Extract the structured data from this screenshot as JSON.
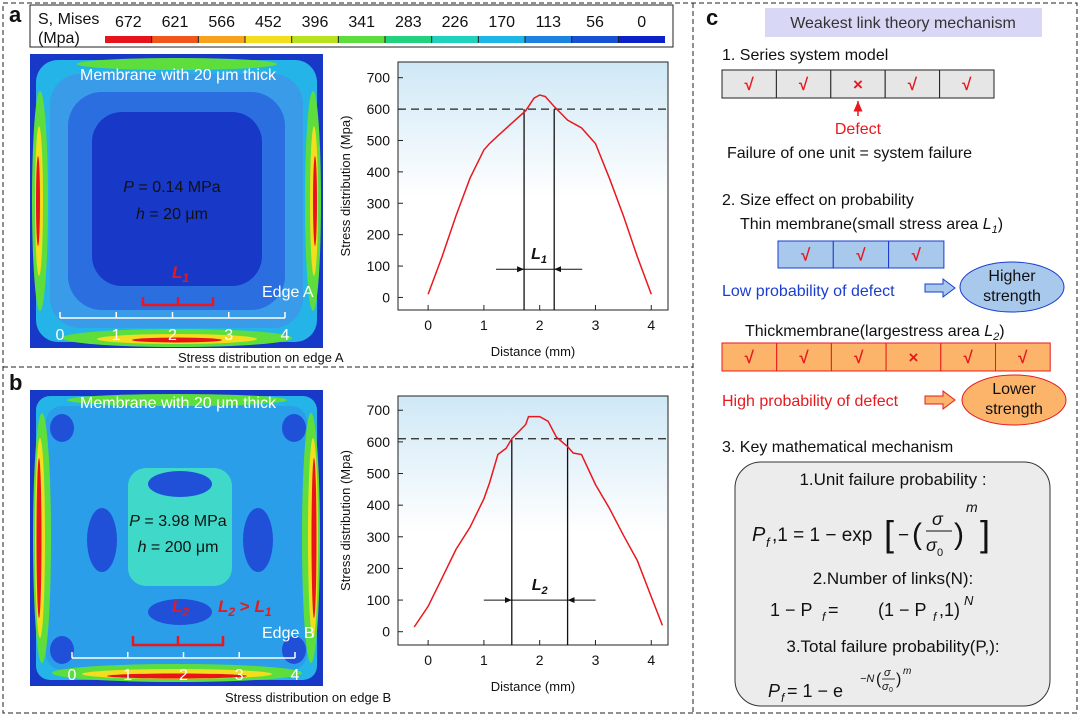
{
  "panel_labels": [
    "a",
    "b",
    "c"
  ],
  "colorbar": {
    "title": "S, Mises",
    "unit": "(Mpa)",
    "values": [
      672,
      621,
      566,
      452,
      396,
      341,
      283,
      226,
      170,
      113,
      56,
      0
    ],
    "colors": [
      "#e8141b",
      "#f2561a",
      "#f7a11c",
      "#f3dd1e",
      "#b6e21e",
      "#5ede3c",
      "#22d27e",
      "#1fd2bc",
      "#1eb6e6",
      "#1c84e0",
      "#1852d4",
      "#0c22c8"
    ]
  },
  "fem_images": [
    {
      "heading": "Membrane with 20 μm thick",
      "pressure": {
        "symbol": "P",
        "text": " = 0.14 MPa"
      },
      "thickness": {
        "symbol": "h",
        "text": " = 20 μm"
      },
      "length_label": {
        "symbol": "L",
        "sub": "1"
      },
      "edge": "Edge A",
      "ticks": [
        0,
        1,
        2,
        3,
        4
      ],
      "caption": "Stress distribution on edge A"
    },
    {
      "heading": "Membrane with 20 μm thick",
      "pressure": {
        "symbol": "P",
        "text": " = 3.98 MPa"
      },
      "thickness": {
        "symbol": "h",
        "text": " = 200 μm"
      },
      "length_label": {
        "symbol": "L",
        "sub": "2"
      },
      "comparison": {
        "a": "L",
        "a_sub": "2",
        "op": " > ",
        "b": "L",
        "b_sub": "1"
      },
      "edge": "Edge B",
      "ticks": [
        0,
        1,
        2,
        3,
        4
      ],
      "caption": "Stress distribution on edge B"
    }
  ],
  "chart_data": [
    {
      "type": "line",
      "ylabel": "Stress distribution (Mpa)",
      "xlabel": "Distance (mm)",
      "color": "#e8191e",
      "x": [
        0,
        0.25,
        0.5,
        0.75,
        1.0,
        1.1,
        1.25,
        1.5,
        1.75,
        1.9,
        2.0,
        2.1,
        2.25,
        2.5,
        2.75,
        3.0,
        3.25,
        3.5,
        3.75,
        4.0
      ],
      "values": [
        10,
        130,
        260,
        380,
        470,
        490,
        515,
        555,
        595,
        635,
        645,
        640,
        610,
        565,
        540,
        490,
        380,
        260,
        130,
        10
      ],
      "xlim": [
        -0.54,
        4.3
      ],
      "ylim": [
        -40,
        750
      ],
      "xticks": [
        0,
        1,
        2,
        3,
        4
      ],
      "yticks": [
        0,
        100,
        200,
        300,
        400,
        500,
        600,
        700
      ],
      "reference_line": 600,
      "annotation": {
        "label": "L",
        "sub": "1",
        "span": [
          1.72,
          2.26
        ],
        "y": 90
      }
    },
    {
      "type": "line",
      "ylabel": "Stress distribution (Mpa)",
      "xlabel": "Distance (mm)",
      "color": "#e8191e",
      "x": [
        -0.25,
        0,
        0.25,
        0.5,
        0.75,
        1.0,
        1.1,
        1.25,
        1.4,
        1.5,
        1.75,
        1.8,
        2.0,
        2.15,
        2.3,
        2.5,
        2.6,
        2.75,
        3.0,
        3.25,
        3.5,
        3.75,
        4.0,
        4.2
      ],
      "values": [
        15,
        80,
        170,
        260,
        330,
        420,
        470,
        560,
        580,
        610,
        655,
        680,
        680,
        665,
        615,
        585,
        565,
        560,
        465,
        390,
        305,
        225,
        110,
        20
      ],
      "xlim": [
        -0.54,
        4.3
      ],
      "ylim": [
        -42,
        745
      ],
      "xticks": [
        0,
        1,
        2,
        3,
        4
      ],
      "yticks": [
        0,
        100,
        200,
        300,
        400,
        500,
        600,
        700
      ],
      "reference_line": 610,
      "annotation": {
        "label": "L",
        "sub": "2",
        "span": [
          1.5,
          2.5
        ],
        "y": 100
      }
    }
  ],
  "weakest_link": {
    "title": "Weakest link theory mechanism",
    "series_model": {
      "heading": "1. Series system model",
      "cells": [
        "√",
        "√",
        "×",
        "√",
        "√"
      ],
      "defect": "Defect",
      "note": "Failure of one unit = system failure"
    },
    "size_effect": {
      "heading": "2. Size effect on probability",
      "thin": {
        "label": "Thin membrane(small stress area ",
        "symbol": "L",
        "sub": "1",
        "close": ")",
        "cells": [
          "√",
          "√",
          "√"
        ],
        "probability": "Low probability of defect",
        "result": [
          "Higher",
          "strength"
        ]
      },
      "thick": {
        "label": "Thickmembrane(largestress area ",
        "symbol": "L",
        "sub": "2",
        "close": ")",
        "cells": [
          "√",
          "√",
          "√",
          "×",
          "√",
          "√"
        ],
        "probability": "High probability of defect",
        "result": [
          "Lower",
          "strength"
        ]
      }
    },
    "math": {
      "heading": "3. Key mathematical mechanism",
      "step1": "1.Unit failure probability :",
      "formula1": [
        "P",
        "f",
        ",1 = 1 − exp",
        "[",
        "−",
        "(",
        "σ",
        "σ",
        "0",
        ")",
        "m",
        "]"
      ],
      "step2": "2.Number of links(N):",
      "formula2": [
        "1 − P",
        "f",
        " =",
        "(1 − P",
        "f",
        ",1)",
        "N"
      ],
      "step3": "3.Total failure probability(P,):",
      "formula3": [
        "P",
        "f",
        " = 1 − e",
        "−N",
        "(",
        "σ",
        "σ",
        "0",
        ")",
        "m"
      ]
    }
  }
}
